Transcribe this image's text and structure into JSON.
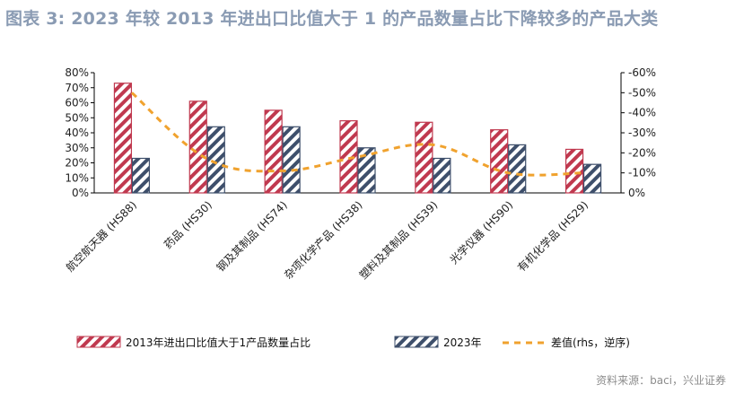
{
  "title": "图表 3:  2023 年较 2013 年进出口比值大于 1 的产品数量占比下降较多的产品大类",
  "source": "资料来源：baci，兴业证券",
  "colors": {
    "series2013": "#c0394f",
    "series2023": "#3e4f6b",
    "diff": "#f0a22e",
    "title": "#8a9bb3"
  },
  "chart_data": {
    "type": "bar",
    "categories": [
      "航空航天器 (HS88)",
      "药品 (HS30)",
      "钢及其制品 (HS74)",
      "杂项化学产品 (HS38)",
      "塑料及其制品 (HS39)",
      "光学仪器 (HS90)",
      "有机化学品 (HS29)"
    ],
    "series": [
      {
        "name": "2013年进出口比值大于1产品数量占比",
        "axis": "left",
        "style": "bar-hatched",
        "values": [
          73,
          61,
          55,
          48,
          47,
          42,
          29
        ]
      },
      {
        "name": "2023年",
        "axis": "left",
        "style": "bar-hatched",
        "values": [
          23,
          44,
          44,
          30,
          23,
          32,
          19
        ]
      },
      {
        "name": "差值(rhs，逆序)",
        "axis": "right",
        "style": "dashed-line",
        "values": [
          -50,
          -17,
          -11,
          -18,
          -24,
          -10,
          -10
        ]
      }
    ],
    "left_axis": {
      "ylim": [
        0,
        80
      ],
      "ticks": [
        "0%",
        "10%",
        "20%",
        "30%",
        "40%",
        "50%",
        "60%",
        "70%",
        "80%"
      ]
    },
    "right_axis": {
      "ylim": [
        0,
        -60
      ],
      "reversed": true,
      "ticks": [
        "0%",
        "-10%",
        "-20%",
        "-30%",
        "-40%",
        "-50%",
        "-60%"
      ]
    },
    "legend_position": "bottom",
    "grid": false
  }
}
